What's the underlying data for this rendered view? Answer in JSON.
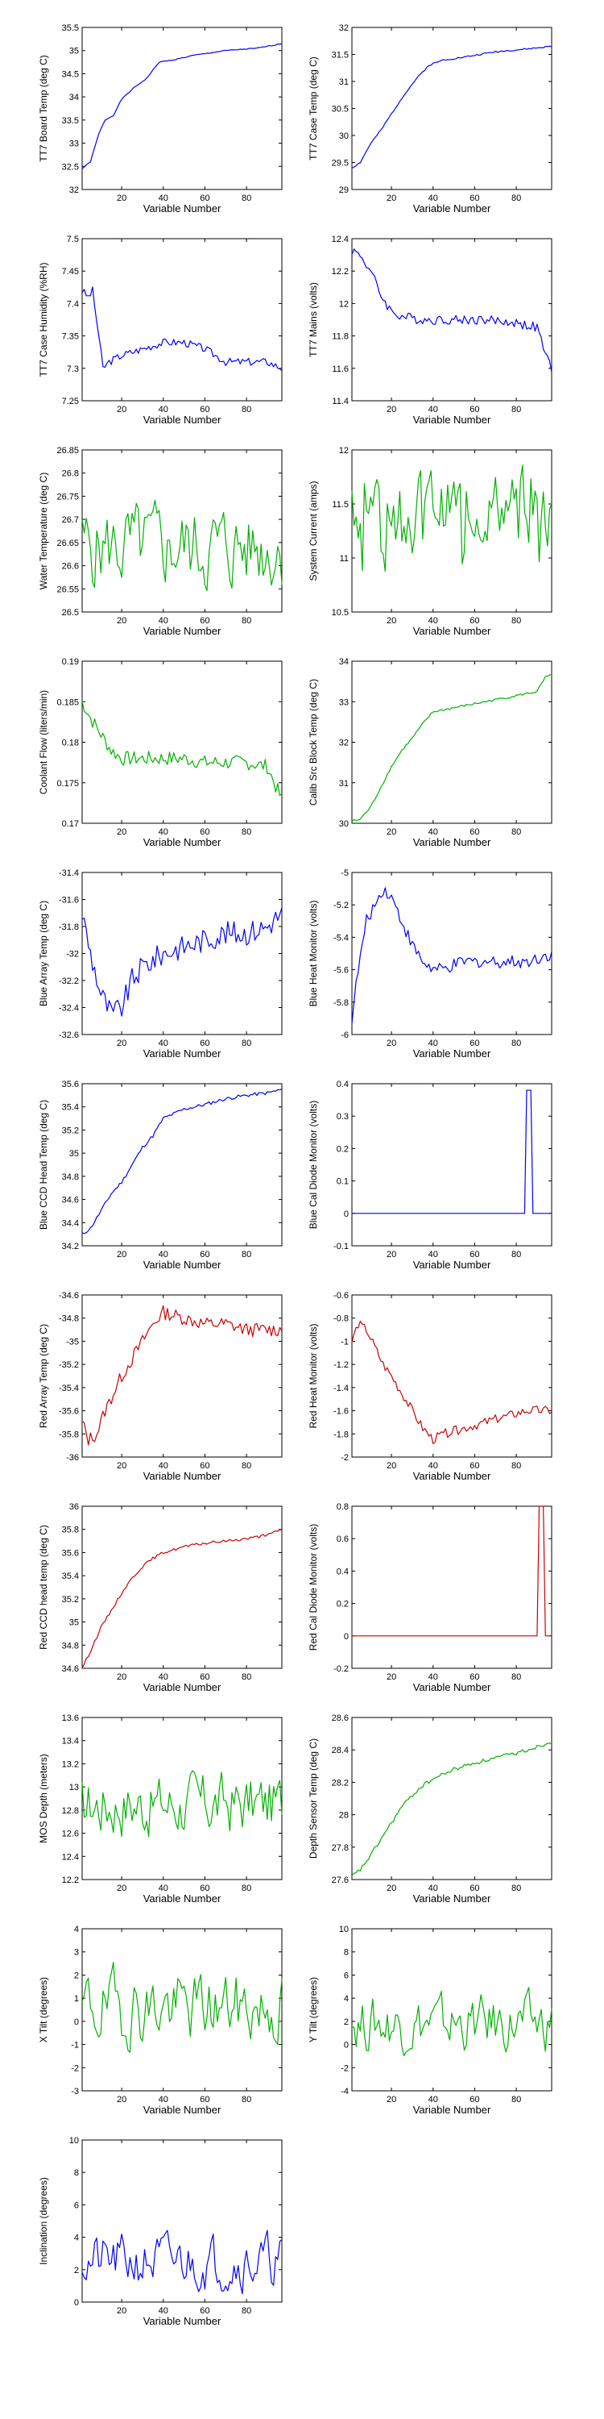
{
  "chart_data": [
    {
      "type": "line",
      "ylabel": "TT7 Board Temp (deg C)",
      "xlabel": "Variable Number",
      "xlim": [
        1,
        97
      ],
      "ylim": [
        32,
        35.5
      ],
      "xticks": [
        20,
        40,
        60,
        80
      ],
      "yticks": [
        32,
        32.5,
        33,
        33.5,
        34,
        34.5,
        35,
        35.5
      ],
      "color": "#0000ff",
      "series": [
        {
          "kind": "knots",
          "x": [
            1,
            5,
            9,
            12,
            16,
            20,
            26,
            32,
            38,
            45,
            55,
            70,
            85,
            97
          ],
          "values": [
            32.45,
            32.6,
            33.2,
            33.5,
            33.6,
            33.95,
            34.2,
            34.4,
            34.75,
            34.8,
            34.9,
            35.0,
            35.05,
            35.15
          ],
          "noise": 0.01,
          "seed": 1
        }
      ]
    },
    {
      "type": "line",
      "ylabel": "TT7 Case Temp (deg C)",
      "xlabel": "Variable Number",
      "xlim": [
        1,
        97
      ],
      "ylim": [
        29,
        32
      ],
      "xticks": [
        20,
        40,
        60,
        80
      ],
      "yticks": [
        29,
        29.5,
        30,
        30.5,
        31,
        31.5,
        32
      ],
      "color": "#0000ff",
      "series": [
        {
          "kind": "knots",
          "x": [
            1,
            5,
            10,
            15,
            20,
            26,
            32,
            38,
            45,
            55,
            70,
            85,
            97
          ],
          "values": [
            29.4,
            29.5,
            29.85,
            30.1,
            30.4,
            30.75,
            31.05,
            31.3,
            31.4,
            31.45,
            31.55,
            31.6,
            31.65
          ],
          "noise": 0.015,
          "seed": 2
        }
      ]
    },
    {
      "type": "line",
      "ylabel": "TT7 Case Humidity (%RH)",
      "xlabel": "Variable Number",
      "xlim": [
        1,
        97
      ],
      "ylim": [
        7.25,
        7.5
      ],
      "xticks": [
        20,
        40,
        60,
        80
      ],
      "yticks": [
        7.25,
        7.3,
        7.35,
        7.4,
        7.45,
        7.5
      ],
      "color": "#0000ff",
      "series": [
        {
          "kind": "knots",
          "x": [
            1,
            4,
            6,
            9,
            11,
            14,
            20,
            30,
            40,
            50,
            60,
            70,
            80,
            90,
            97
          ],
          "values": [
            7.42,
            7.41,
            7.42,
            7.35,
            7.3,
            7.31,
            7.32,
            7.33,
            7.34,
            7.34,
            7.33,
            7.31,
            7.31,
            7.31,
            7.3
          ],
          "noise": 0.006,
          "seed": 3
        }
      ]
    },
    {
      "type": "line",
      "ylabel": "TT7 Mains  (volts)",
      "xlabel": "Variable Number",
      "xlim": [
        1,
        97
      ],
      "ylim": [
        11.4,
        12.4
      ],
      "xticks": [
        20,
        40,
        60,
        80
      ],
      "yticks": [
        11.4,
        11.6,
        11.8,
        12,
        12.2,
        12.4
      ],
      "color": "#0000ff",
      "series": [
        {
          "kind": "knots",
          "x": [
            1,
            5,
            10,
            15,
            20,
            25,
            35,
            50,
            65,
            80,
            90,
            95,
            97
          ],
          "values": [
            12.33,
            12.3,
            12.2,
            12.05,
            11.95,
            11.92,
            11.9,
            11.9,
            11.9,
            11.88,
            11.85,
            11.65,
            11.6
          ],
          "noise": 0.03,
          "seed": 4
        }
      ]
    },
    {
      "type": "line",
      "ylabel": "Water Temperature (deg C)",
      "xlabel": "Variable Number",
      "xlim": [
        1,
        97
      ],
      "ylim": [
        26.5,
        26.85
      ],
      "xticks": [
        20,
        40,
        60,
        80
      ],
      "yticks": [
        26.5,
        26.55,
        26.6,
        26.65,
        26.7,
        26.75,
        26.8,
        26.85
      ],
      "color": "#00b000",
      "series": [
        {
          "kind": "noisy",
          "x_start": 1,
          "x_end": 97,
          "n": 97,
          "mean": 26.64,
          "amp": 0.1,
          "seed": 5
        }
      ]
    },
    {
      "type": "line",
      "ylabel": "System Current (amps)",
      "xlabel": "Variable Number",
      "xlim": [
        1,
        97
      ],
      "ylim": [
        10.5,
        12
      ],
      "xticks": [
        20,
        40,
        60,
        80
      ],
      "yticks": [
        10.5,
        11,
        11.5,
        12
      ],
      "color": "#00b000",
      "series": [
        {
          "kind": "noisy",
          "x_start": 1,
          "x_end": 97,
          "n": 97,
          "mean": 11.5,
          "amp": 0.35,
          "seed": 6,
          "dips": true
        }
      ]
    },
    {
      "type": "line",
      "ylabel": "Coolant Flow (liters/min)",
      "xlabel": "Variable Number",
      "xlim": [
        1,
        97
      ],
      "ylim": [
        0.17,
        0.19
      ],
      "xticks": [
        20,
        40,
        60,
        80
      ],
      "yticks": [
        0.17,
        0.175,
        0.18,
        0.185,
        0.19
      ],
      "color": "#00b000",
      "series": [
        {
          "kind": "knots",
          "x": [
            1,
            5,
            10,
            15,
            20,
            30,
            40,
            50,
            60,
            70,
            80,
            90,
            95,
            97
          ],
          "values": [
            0.185,
            0.183,
            0.181,
            0.179,
            0.178,
            0.178,
            0.178,
            0.178,
            0.1775,
            0.1775,
            0.1775,
            0.177,
            0.174,
            0.173
          ],
          "noise": 0.0009,
          "seed": 7
        }
      ]
    },
    {
      "type": "line",
      "ylabel": "Calib Src Block Temp (deg C)",
      "xlabel": "Variable Number",
      "xlim": [
        1,
        97
      ],
      "ylim": [
        30,
        34
      ],
      "xticks": [
        20,
        40,
        60,
        80
      ],
      "yticks": [
        30,
        31,
        32,
        33,
        34
      ],
      "color": "#00b000",
      "series": [
        {
          "kind": "knots",
          "x": [
            1,
            5,
            10,
            15,
            20,
            25,
            30,
            35,
            40,
            50,
            60,
            70,
            80,
            90,
            94,
            97
          ],
          "values": [
            30.05,
            30.1,
            30.4,
            30.9,
            31.4,
            31.8,
            32.1,
            32.45,
            32.75,
            32.85,
            32.95,
            33.05,
            33.15,
            33.25,
            33.6,
            33.65
          ],
          "noise": 0.03,
          "seed": 8
        }
      ]
    },
    {
      "type": "line",
      "ylabel": "Blue Array Temp (deg C)",
      "xlabel": "Variable Number",
      "xlim": [
        1,
        97
      ],
      "ylim": [
        -32.6,
        -31.4
      ],
      "xticks": [
        20,
        40,
        60,
        80
      ],
      "yticks": [
        -32.6,
        -32.4,
        -32.2,
        -32,
        -31.8,
        -31.6,
        -31.4
      ],
      "color": "#0000ff",
      "series": [
        {
          "kind": "knots",
          "x": [
            1,
            5,
            10,
            15,
            20,
            25,
            30,
            40,
            50,
            60,
            70,
            80,
            90,
            97
          ],
          "values": [
            -31.7,
            -32.0,
            -32.3,
            -32.45,
            -32.4,
            -32.2,
            -32.1,
            -32.0,
            -31.95,
            -31.9,
            -31.85,
            -31.85,
            -31.8,
            -31.7
          ],
          "noise": 0.09,
          "seed": 9
        }
      ]
    },
    {
      "type": "line",
      "ylabel": "Blue Heat Monitor (volts)",
      "xlabel": "Variable Number",
      "xlim": [
        1,
        97
      ],
      "ylim": [
        -6,
        -5
      ],
      "xticks": [
        20,
        40,
        60,
        80
      ],
      "yticks": [
        -6,
        -5.8,
        -5.6,
        -5.4,
        -5.2,
        -5
      ],
      "color": "#0000ff",
      "series": [
        {
          "kind": "knots",
          "x": [
            1,
            4,
            8,
            12,
            16,
            20,
            25,
            30,
            35,
            40,
            45,
            55,
            70,
            85,
            97
          ],
          "values": [
            -5.9,
            -5.6,
            -5.3,
            -5.2,
            -5.1,
            -5.15,
            -5.3,
            -5.45,
            -5.55,
            -5.6,
            -5.6,
            -5.55,
            -5.55,
            -5.55,
            -5.5
          ],
          "noise": 0.04,
          "seed": 10
        }
      ]
    },
    {
      "type": "line",
      "ylabel": "Blue CCD Head Temp (deg C)",
      "xlabel": "Variable Number",
      "xlim": [
        1,
        97
      ],
      "ylim": [
        34.2,
        35.6
      ],
      "xticks": [
        20,
        40,
        60,
        80
      ],
      "yticks": [
        34.2,
        34.4,
        34.6,
        34.8,
        35,
        35.2,
        35.4,
        35.6
      ],
      "color": "#0000ff",
      "series": [
        {
          "kind": "knots",
          "x": [
            1,
            5,
            10,
            15,
            20,
            25,
            30,
            35,
            40,
            50,
            60,
            70,
            80,
            90,
            97
          ],
          "values": [
            34.3,
            34.35,
            34.5,
            34.65,
            34.75,
            34.9,
            35.05,
            35.15,
            35.3,
            35.38,
            35.42,
            35.47,
            35.5,
            35.52,
            35.55
          ],
          "noise": 0.015,
          "seed": 11
        }
      ]
    },
    {
      "type": "line",
      "ylabel": "Blue Cal Diode Monitor (volts)",
      "xlabel": "Variable Number",
      "xlim": [
        1,
        97
      ],
      "ylim": [
        -0.1,
        0.4
      ],
      "xticks": [
        20,
        40,
        60,
        80
      ],
      "yticks": [
        -0.1,
        0,
        0.1,
        0.2,
        0.3,
        0.4
      ],
      "color": "#0000ff",
      "series": [
        {
          "kind": "pulse",
          "x_start": 1,
          "x_end": 97,
          "base": 0,
          "pulse_x": [
            84,
            85,
            86,
            87,
            88
          ],
          "pulse_values": [
            0,
            0.38,
            0.38,
            0.38,
            0
          ]
        }
      ]
    },
    {
      "type": "line",
      "ylabel": "Red Array Temp (deg C)",
      "xlabel": "Variable Number",
      "xlim": [
        1,
        97
      ],
      "ylim": [
        -36,
        -34.6
      ],
      "xticks": [
        20,
        40,
        60,
        80
      ],
      "yticks": [
        -36,
        -35.8,
        -35.6,
        -35.4,
        -35.2,
        -35,
        -34.8,
        -34.6
      ],
      "color": "#cc0000",
      "series": [
        {
          "kind": "knots",
          "x": [
            1,
            4,
            8,
            12,
            16,
            20,
            25,
            30,
            35,
            40,
            50,
            60,
            70,
            80,
            90,
            97
          ],
          "values": [
            -35.7,
            -35.85,
            -35.8,
            -35.6,
            -35.45,
            -35.3,
            -35.15,
            -35.0,
            -34.85,
            -34.75,
            -34.8,
            -34.85,
            -34.85,
            -34.9,
            -34.9,
            -34.9
          ],
          "noise": 0.06,
          "seed": 13
        }
      ]
    },
    {
      "type": "line",
      "ylabel": "Red Heat Monitor (volts)",
      "xlabel": "Variable Number",
      "xlim": [
        1,
        97
      ],
      "ylim": [
        -2,
        -0.6
      ],
      "xticks": [
        20,
        40,
        60,
        80
      ],
      "yticks": [
        -2,
        -1.8,
        -1.6,
        -1.4,
        -1.2,
        -1,
        -0.8,
        -0.6
      ],
      "color": "#cc0000",
      "series": [
        {
          "kind": "knots",
          "x": [
            1,
            4,
            8,
            12,
            16,
            20,
            25,
            30,
            35,
            40,
            45,
            55,
            65,
            75,
            85,
            97
          ],
          "values": [
            -1.0,
            -0.85,
            -0.9,
            -1.05,
            -1.2,
            -1.3,
            -1.45,
            -1.6,
            -1.75,
            -1.85,
            -1.8,
            -1.75,
            -1.7,
            -1.65,
            -1.6,
            -1.6
          ],
          "noise": 0.04,
          "seed": 14
        }
      ]
    },
    {
      "type": "line",
      "ylabel": "Red CCD head temp (deg C)",
      "xlabel": "Variable Number",
      "xlim": [
        1,
        97
      ],
      "ylim": [
        34.6,
        36
      ],
      "xticks": [
        20,
        40,
        60,
        80
      ],
      "yticks": [
        34.6,
        34.8,
        35,
        35.2,
        35.4,
        35.6,
        35.8,
        36
      ],
      "color": "#cc0000",
      "series": [
        {
          "kind": "knots",
          "x": [
            1,
            5,
            10,
            15,
            20,
            25,
            30,
            35,
            40,
            50,
            60,
            70,
            80,
            90,
            97
          ],
          "values": [
            34.6,
            34.75,
            34.95,
            35.1,
            35.25,
            35.38,
            35.48,
            35.55,
            35.6,
            35.65,
            35.68,
            35.7,
            35.72,
            35.75,
            35.8
          ],
          "noise": 0.012,
          "seed": 15
        }
      ]
    },
    {
      "type": "line",
      "ylabel": "Red Cal Diode Monitor (volts)",
      "xlabel": "Variable Number",
      "xlim": [
        1,
        97
      ],
      "ylim": [
        -0.2,
        0.8
      ],
      "xticks": [
        20,
        40,
        60,
        80
      ],
      "yticks": [
        -0.2,
        0,
        0.2,
        0.4,
        0.6,
        0.8
      ],
      "color": "#cc0000",
      "series": [
        {
          "kind": "pulse",
          "x_start": 1,
          "x_end": 97,
          "base": 0,
          "pulse_x": [
            90,
            91,
            92,
            93,
            94
          ],
          "pulse_values": [
            0,
            0.8,
            0.8,
            0.8,
            0
          ]
        }
      ]
    },
    {
      "type": "line",
      "ylabel": "MOS Depth  (meters)",
      "xlabel": "Variable Number",
      "xlim": [
        1,
        97
      ],
      "ylim": [
        12.2,
        13.6
      ],
      "xticks": [
        20,
        40,
        60,
        80
      ],
      "yticks": [
        12.2,
        12.4,
        12.6,
        12.8,
        13,
        13.2,
        13.4,
        13.6
      ],
      "color": "#00b000",
      "series": [
        {
          "kind": "noisy",
          "x_start": 1,
          "x_end": 97,
          "n": 97,
          "mean": 12.85,
          "amp": 0.3,
          "seed": 17
        }
      ]
    },
    {
      "type": "line",
      "ylabel": "Depth Sensor Temp (deg C)",
      "xlabel": "Variable Number",
      "xlim": [
        1,
        97
      ],
      "ylim": [
        27.6,
        28.6
      ],
      "xticks": [
        20,
        40,
        60,
        80
      ],
      "yticks": [
        27.6,
        27.8,
        28,
        28.2,
        28.4,
        28.6
      ],
      "color": "#00b000",
      "series": [
        {
          "kind": "knots",
          "x": [
            1,
            5,
            10,
            15,
            20,
            25,
            30,
            35,
            40,
            50,
            60,
            70,
            80,
            90,
            97
          ],
          "values": [
            27.62,
            27.66,
            27.75,
            27.85,
            27.95,
            28.05,
            28.12,
            28.18,
            28.22,
            28.28,
            28.32,
            28.35,
            28.38,
            28.42,
            28.45
          ],
          "noise": 0.012,
          "seed": 18
        }
      ]
    },
    {
      "type": "line",
      "ylabel": "X Tilt  (degrees)",
      "xlabel": "Variable Number",
      "xlim": [
        1,
        97
      ],
      "ylim": [
        -3,
        4
      ],
      "xticks": [
        20,
        40,
        60,
        80
      ],
      "yticks": [
        -3,
        -2,
        -1,
        0,
        1,
        2,
        3,
        4
      ],
      "color": "#00b000",
      "series": [
        {
          "kind": "noisy",
          "x_start": 1,
          "x_end": 97,
          "n": 97,
          "mean": 0.6,
          "amp": 1.7,
          "seed": 19
        }
      ]
    },
    {
      "type": "line",
      "ylabel": "Y Tilt  (degrees)",
      "xlabel": "Variable Number",
      "xlim": [
        1,
        97
      ],
      "ylim": [
        -4,
        10
      ],
      "xticks": [
        20,
        40,
        60,
        80
      ],
      "yticks": [
        -4,
        -2,
        0,
        2,
        4,
        6,
        8,
        10
      ],
      "color": "#00b000",
      "series": [
        {
          "kind": "noisy",
          "x_start": 1,
          "x_end": 97,
          "n": 97,
          "mean": 1.8,
          "amp": 2.6,
          "seed": 20
        }
      ]
    },
    {
      "type": "line",
      "ylabel": "Inclination  (degrees)",
      "xlabel": "Variable Number",
      "xlim": [
        1,
        97
      ],
      "ylim": [
        0,
        10
      ],
      "xticks": [
        20,
        40,
        60,
        80
      ],
      "yticks": [
        0,
        2,
        4,
        6,
        8,
        10
      ],
      "color": "#0000ff",
      "series": [
        {
          "kind": "noisy",
          "x_start": 1,
          "x_end": 97,
          "n": 97,
          "mean": 2.5,
          "amp": 1.8,
          "seed": 21,
          "positive": true
        }
      ]
    }
  ]
}
